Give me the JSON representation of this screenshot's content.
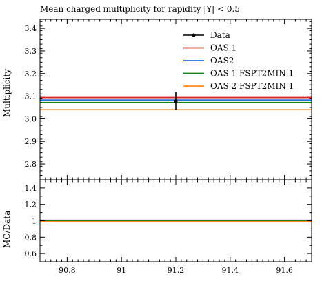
{
  "chart_data": {
    "type": "line",
    "title": "Mean charged multiplicity for rapidity |Y| < 0.5",
    "xlim": [
      90.7,
      91.7
    ],
    "x_ticks": [
      90.8,
      91.0,
      91.2,
      91.4,
      91.6
    ],
    "x_tick_labels": [
      "90.8",
      "91",
      "91.2",
      "91.4",
      "91.6"
    ],
    "main": {
      "ylabel": "Multiplicity",
      "ylim": [
        2.73,
        3.44
      ],
      "y_ticks": [
        2.8,
        2.9,
        3.0,
        3.1,
        3.2,
        3.3,
        3.4
      ],
      "y_tick_labels": [
        "2.8",
        "2.9",
        "3.0",
        "3.1",
        "3.2",
        "3.3",
        "3.4"
      ],
      "data": {
        "name": "Data",
        "x": 91.2,
        "y": 3.078,
        "yerr": 0.04,
        "color": "#000000"
      },
      "series": [
        {
          "name": "OAS 1",
          "color": "#d62728",
          "y": 3.094
        },
        {
          "name": "OAS2",
          "color": "#2b6fe3",
          "y": 3.083
        },
        {
          "name": "OAS 1 FSPT2MIN 1",
          "color": "#1a7f1a",
          "y": 3.072
        },
        {
          "name": "OAS 2 FSPT2MIN 1",
          "color": "#ff8c1a",
          "y": 3.04
        }
      ],
      "legend_placement": "top-right"
    },
    "ratio": {
      "ylabel": "MC/Data",
      "ylim": [
        0.5,
        1.5
      ],
      "y_ticks": [
        0.6,
        0.8,
        1.0,
        1.2,
        1.4
      ],
      "y_tick_labels": [
        "0.6",
        "0.8",
        "1",
        "1.2",
        "1.4"
      ],
      "band_color": "#e0e0e0",
      "series": [
        {
          "name": "OAS 1",
          "color": "#d62728",
          "y": 1.005
        },
        {
          "name": "OAS2",
          "color": "#2b6fe3",
          "y": 1.002
        },
        {
          "name": "OAS 1 FSPT2MIN 1",
          "color": "#1a7f1a",
          "y": 0.998
        },
        {
          "name": "OAS 2 FSPT2MIN 1",
          "color": "#ff8c1a",
          "y": 0.988
        }
      ]
    }
  }
}
